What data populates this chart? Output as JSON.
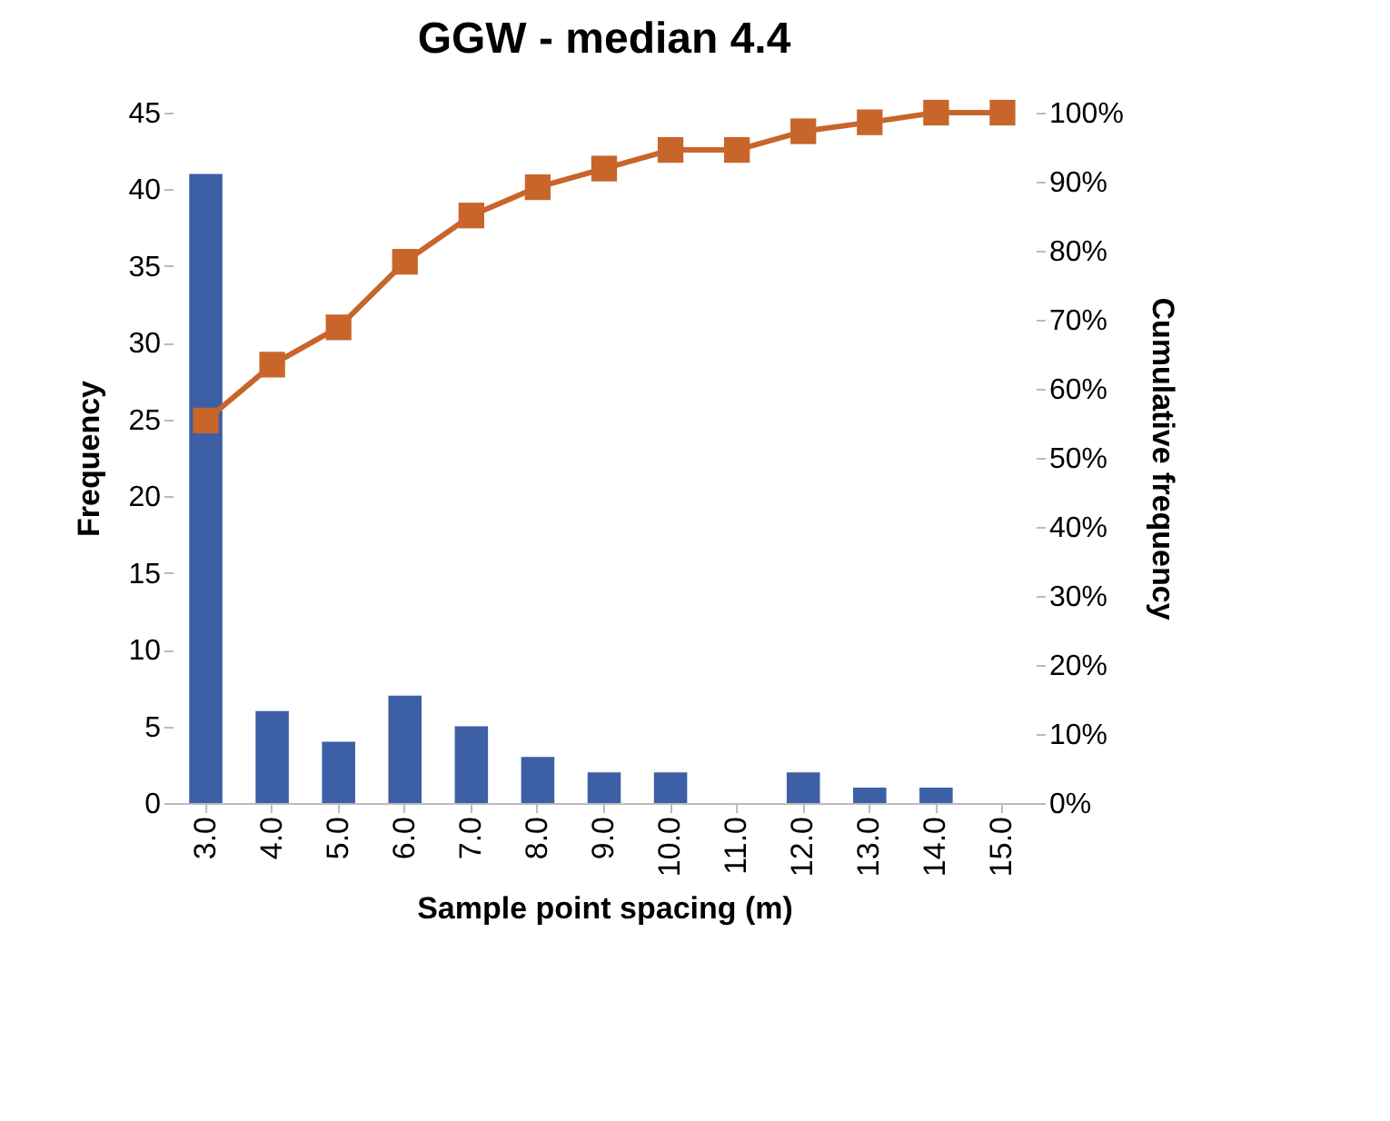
{
  "chart_data": {
    "type": "bar",
    "title": "GGW - median 4.4",
    "xlabel": "Sample point spacing (m)",
    "ylabel": "Frequency",
    "y2label": "Cumulative frequency",
    "categories": [
      "3.0",
      "4.0",
      "5.0",
      "6.0",
      "7.0",
      "8.0",
      "9.0",
      "10.0",
      "11.0",
      "12.0",
      "13.0",
      "14.0",
      "15.0"
    ],
    "series": [
      {
        "color": "#3d5fa6",
        "values": [
          41,
          6,
          4,
          7,
          5,
          3,
          2,
          2,
          0,
          2,
          1,
          1,
          0
        ]
      },
      {
        "type": "line",
        "axis": "y2",
        "color": "#c8652a",
        "marker": "square",
        "values": [
          55.4,
          63.5,
          68.9,
          78.4,
          85.1,
          89.2,
          91.9,
          94.6,
          94.6,
          97.3,
          98.6,
          100,
          100
        ]
      }
    ],
    "ylim": [
      0,
      45
    ],
    "yticks": [
      0,
      5,
      10,
      15,
      20,
      25,
      30,
      35,
      40,
      45
    ],
    "y2lim": [
      0,
      100
    ],
    "y2ticks": [
      {
        "value": 0,
        "label": "0%"
      },
      {
        "value": 10,
        "label": "10%"
      },
      {
        "value": 20,
        "label": "20%"
      },
      {
        "value": 30,
        "label": "30%"
      },
      {
        "value": 40,
        "label": "40%"
      },
      {
        "value": 50,
        "label": "50%"
      },
      {
        "value": 60,
        "label": "60%"
      },
      {
        "value": 70,
        "label": "70%"
      },
      {
        "value": 80,
        "label": "80%"
      },
      {
        "value": 90,
        "label": "90%"
      },
      {
        "value": 100,
        "label": "100%"
      }
    ],
    "grid": false
  }
}
